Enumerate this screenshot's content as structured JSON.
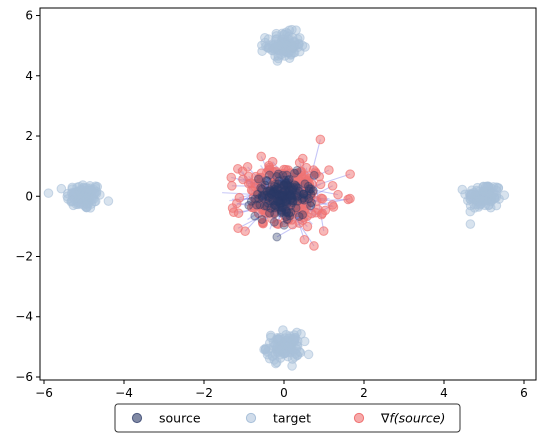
{
  "chart_data": {
    "type": "scatter",
    "title": "",
    "xlabel": "",
    "ylabel": "",
    "xlim": [
      -6.1,
      6.3
    ],
    "ylim": [
      -6.1,
      6.25
    ],
    "x_ticks": [
      -6,
      -4,
      -2,
      0,
      2,
      4,
      6
    ],
    "y_ticks": [
      -6,
      -4,
      -2,
      0,
      2,
      4,
      6
    ],
    "grid": false,
    "legend_position": "bottom-center, outside plot",
    "series": [
      {
        "name": "source",
        "marker": "circle",
        "color": "#2b3a67",
        "clusters": [
          {
            "center": [
              0.0,
              0.0
            ],
            "spread": 0.35,
            "count": 180
          }
        ]
      },
      {
        "name": "target",
        "marker": "circle",
        "color": "#a9c0d9",
        "clusters": [
          {
            "center": [
              -5.0,
              0.0
            ],
            "spread": 0.22,
            "count": 110
          },
          {
            "center": [
              5.0,
              0.0
            ],
            "spread": 0.22,
            "count": 110
          },
          {
            "center": [
              0.0,
              5.0
            ],
            "spread": 0.22,
            "count": 110
          },
          {
            "center": [
              0.0,
              -5.0
            ],
            "spread": 0.22,
            "count": 110
          }
        ]
      },
      {
        "name": "∇f(source)",
        "marker": "circle",
        "color": "#f07272",
        "clusters": [
          {
            "center": [
              0.0,
              0.0
            ],
            "spread": 0.55,
            "count": 230
          }
        ]
      }
    ],
    "connector_color": "#8080ee"
  },
  "legend": {
    "items": [
      {
        "label": "source",
        "color": "#2b3a67"
      },
      {
        "label": "target",
        "color": "#a9c0d9"
      },
      {
        "label_main": "∇",
        "label_func": "f",
        "label_rest": "(source)",
        "color": "#f07272"
      }
    ]
  }
}
